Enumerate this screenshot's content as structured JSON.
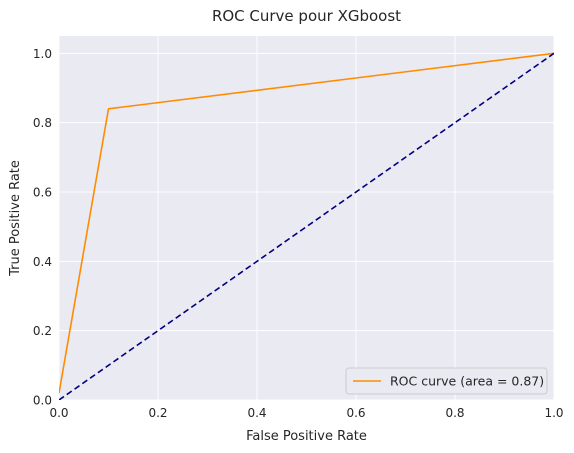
{
  "chart_data": {
    "type": "line",
    "title": "ROC Curve pour XGboost",
    "xlabel": "False Positive Rate",
    "ylabel": "True Positive Rate",
    "xlim": [
      0.0,
      1.0
    ],
    "ylim": [
      0.0,
      1.05
    ],
    "x_ticks": [
      "0.0",
      "0.2",
      "0.4",
      "0.6",
      "0.8",
      "1.0"
    ],
    "y_ticks": [
      "0.0",
      "0.2",
      "0.4",
      "0.6",
      "0.8",
      "1.0"
    ],
    "grid": true,
    "legend_position": "lower right",
    "series": [
      {
        "name": "ROC curve (area = 0.87)",
        "color": "#ff8c00",
        "style": "solid",
        "x": [
          0.0,
          0.1,
          1.0
        ],
        "y": [
          0.02,
          0.84,
          1.0
        ]
      },
      {
        "color": "#000080",
        "style": "dashed",
        "x": [
          0.0,
          1.0
        ],
        "y": [
          0.0,
          1.0
        ]
      }
    ],
    "colors": {
      "background": "#eaeaf2",
      "grid": "#ffffff",
      "text": "#262626"
    }
  }
}
